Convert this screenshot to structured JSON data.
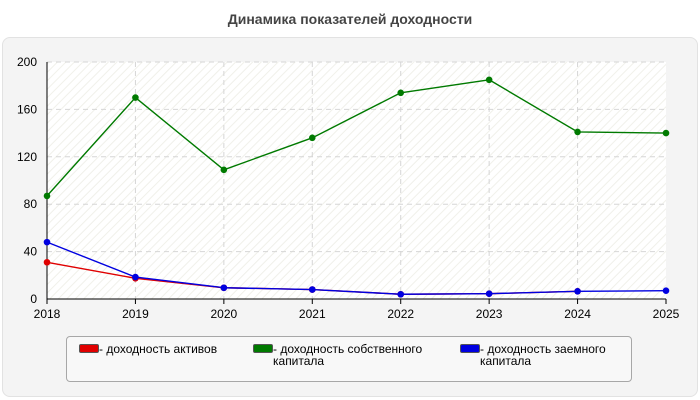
{
  "chart_data": {
    "type": "line",
    "title": "Динамика показателей доходности",
    "x": [
      "2018",
      "2019",
      "2020",
      "2021",
      "2022",
      "2023",
      "2024",
      "2025"
    ],
    "ylim": [
      0,
      200
    ],
    "yticks": [
      "0",
      "40",
      "80",
      "120",
      "160",
      "200"
    ],
    "grid": true,
    "legend_placement": "bottom",
    "series": [
      {
        "name": "- доходность активов",
        "color": "#e00000",
        "values": [
          31,
          17.5,
          9.5,
          8,
          4,
          4.5,
          6.5,
          null
        ]
      },
      {
        "name": "- доходность собственного капитала",
        "color": "#007a00",
        "values": [
          87,
          170,
          109,
          136,
          174,
          185,
          141,
          140
        ]
      },
      {
        "name": "- доходность заемного капитала",
        "color": "#0000e0",
        "values": [
          48,
          18.5,
          9.5,
          8,
          4,
          4.5,
          6.5,
          7
        ]
      }
    ]
  }
}
